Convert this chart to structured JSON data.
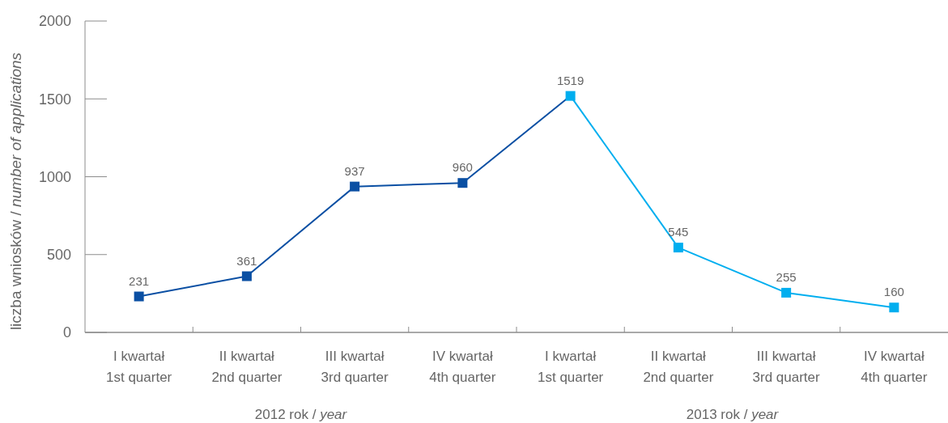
{
  "chart_data": {
    "type": "line",
    "ylabel": "liczba wniosków / number of applications",
    "categories": [
      "I kwartał\n1st quarter",
      "II kwartał\n2nd quarter",
      "III kwartał\n3rd quarter",
      "IV kwartał\n4th quarter",
      "I kwartał\n1st quarter",
      "II kwartał\n2nd quarter",
      "III kwartał\n3rd quarter",
      "IV kwartał\n4th quarter"
    ],
    "values": [
      231,
      361,
      937,
      960,
      1519,
      545,
      255,
      160
    ],
    "colors": [
      "#0a4fa3",
      "#0a4fa3",
      "#0a4fa3",
      "#0a4fa3",
      "#00aeef",
      "#00aeef",
      "#00aeef",
      "#00aeef"
    ],
    "marker": "square",
    "data_labels": true,
    "ylim": [
      0,
      2000
    ],
    "yticks": [
      0,
      500,
      1000,
      1500,
      2000
    ],
    "annotations": [
      "2012 rok / year",
      "2013 rok / year"
    ]
  }
}
